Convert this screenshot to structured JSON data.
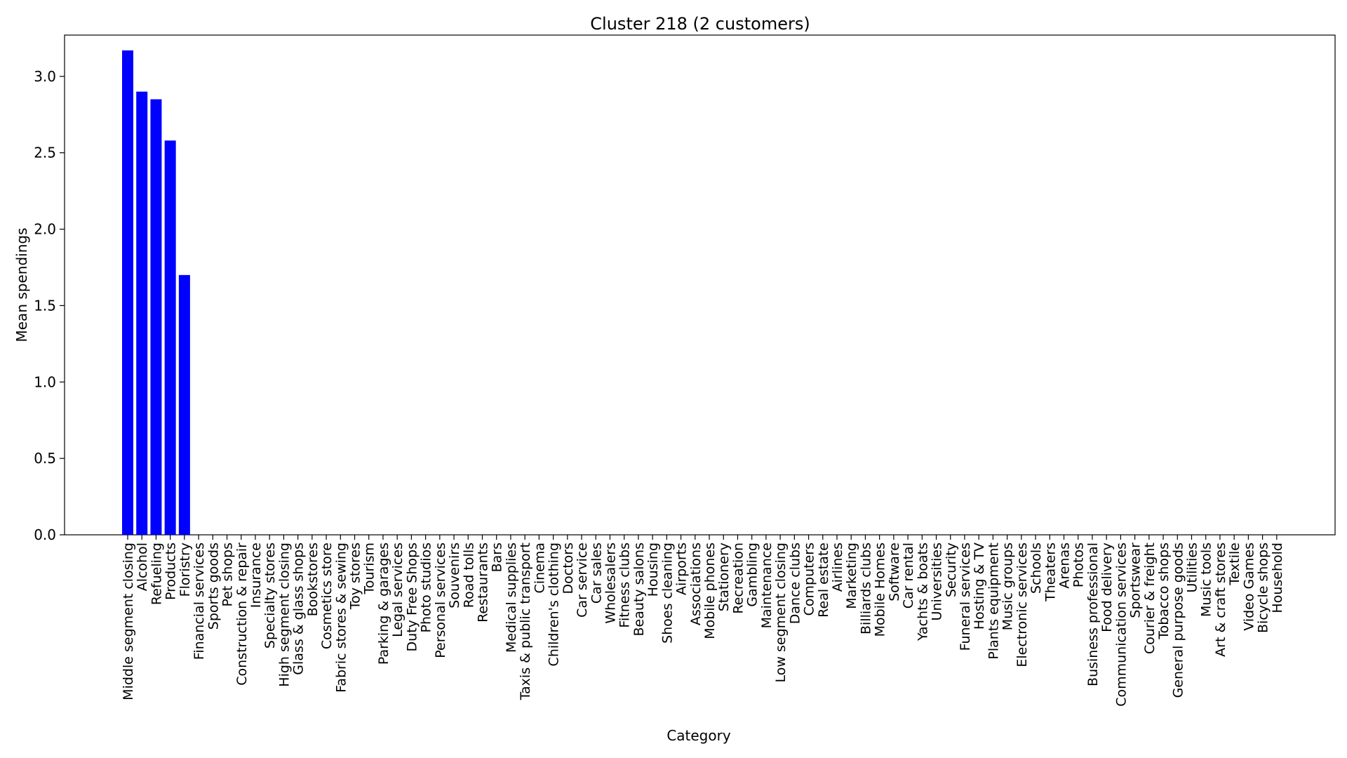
{
  "chart_data": {
    "type": "bar",
    "title": "Cluster 218 (2 customers)",
    "xlabel": "Category",
    "ylabel": "Mean spendings",
    "ylim": [
      0,
      3.27
    ],
    "yticks": [
      "0.0",
      "0.5",
      "1.0",
      "1.5",
      "2.0",
      "2.5",
      "3.0"
    ],
    "grid": false,
    "bar_color": "#0000ff",
    "categories": [
      "Middle segment closing",
      "Alcohol",
      "Refueling",
      "Products",
      "Floristry",
      "Financial services",
      "Sports goods",
      "Pet shops",
      "Construction & repair",
      "Insurance",
      "Specialty stores",
      "High segment closing",
      "Glass & glass shops",
      "Bookstores",
      "Cosmetics store",
      "Fabric stores & sewing",
      "Toy stores",
      "Tourism",
      "Parking & garages",
      "Legal services",
      "Duty Free Shops",
      "Photo studios",
      "Personal services",
      "Souvenirs",
      "Road tolls",
      "Restaurants",
      "Bars",
      "Medical supplies",
      "Taxis & public transport",
      "Cinema",
      "Children's clothing",
      "Doctors",
      "Car service",
      "Car sales",
      "Wholesalers",
      "Fitness clubs",
      "Beauty salons",
      "Housing",
      "Shoes cleaning",
      "Airports",
      "Associations",
      "Mobile phones",
      "Stationery",
      "Recreation",
      "Gambling",
      "Maintenance",
      "Low segment closing",
      "Dance clubs",
      "Computers",
      "Real estate",
      "Airlines",
      "Marketing",
      "Billiards clubs",
      "Mobile Homes",
      "Software",
      "Car rental",
      "Yachts & boats",
      "Universities",
      "Security",
      "Funeral services",
      "Hosting & TV",
      "Plants equipment",
      "Music groups",
      "Electronic services",
      "Schools",
      "Theaters",
      "Arenas",
      "Photos",
      "Business professional",
      "Food delivery",
      "Communication services",
      "Sportswear",
      "Courier & freight",
      "Tobacco shops",
      "General purpose goods",
      "Utilities",
      "Music tools",
      "Art & craft stores",
      "Textile",
      "Video Games",
      "Bicycle shops",
      "Household"
    ],
    "values": [
      3.17,
      2.9,
      2.85,
      2.58,
      1.7,
      0,
      0,
      0,
      0,
      0,
      0,
      0,
      0,
      0,
      0,
      0,
      0,
      0,
      0,
      0,
      0,
      0,
      0,
      0,
      0,
      0,
      0,
      0,
      0,
      0,
      0,
      0,
      0,
      0,
      0,
      0,
      0,
      0,
      0,
      0,
      0,
      0,
      0,
      0,
      0,
      0,
      0,
      0,
      0,
      0,
      0,
      0,
      0,
      0,
      0,
      0,
      0,
      0,
      0,
      0,
      0,
      0,
      0,
      0,
      0,
      0,
      0,
      0,
      0,
      0,
      0,
      0,
      0,
      0,
      0,
      0,
      0,
      0,
      0,
      0,
      0,
      0
    ]
  }
}
